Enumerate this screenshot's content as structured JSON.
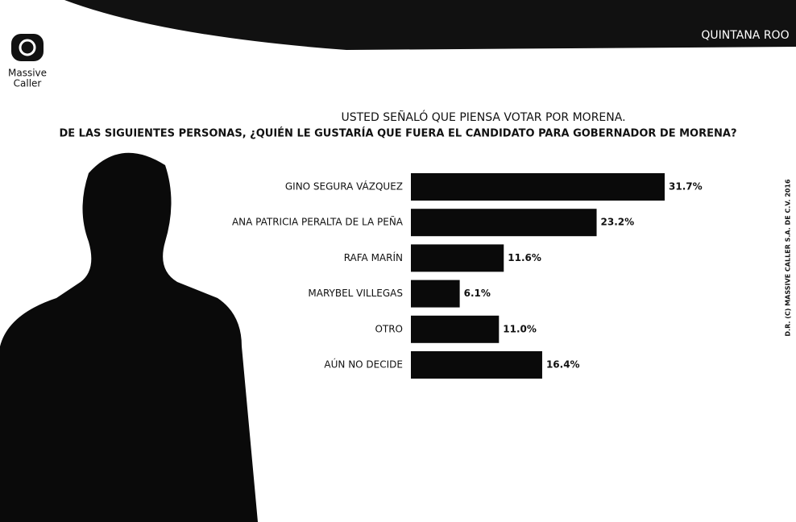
{
  "header": {
    "region": "QUINTANA ROO",
    "logo": [
      "Massive",
      "Caller"
    ],
    "side_note": "D.R. (C) MASSIVE CALLER S.A. DE C.V. 2016"
  },
  "chart_data": {
    "type": "bar",
    "orientation": "horizontal",
    "title": "USTED SEÑALÓ QUE PIENSA VOTAR POR MORENA.",
    "subtitle": "DE LAS SIGUIENTES PERSONAS, ¿QUIÉN LE GUSTARÍA QUE FUERA EL CANDIDATO PARA GOBERNADOR DE MORENA?",
    "categories": [
      "GINO SEGURA VÁZQUEZ",
      "ANA PATRICIA PERALTA DE LA PEÑA",
      "RAFA MARÍN",
      "MARYBEL VILLEGAS",
      "OTRO",
      "AÚN NO DECIDE"
    ],
    "values": [
      31.7,
      23.2,
      11.6,
      6.1,
      11.0,
      16.4
    ],
    "value_labels": [
      "31.7%",
      "23.2%",
      "11.6%",
      "6.1%",
      "11.0%",
      "16.4%"
    ],
    "color": "#0a0a0a"
  }
}
